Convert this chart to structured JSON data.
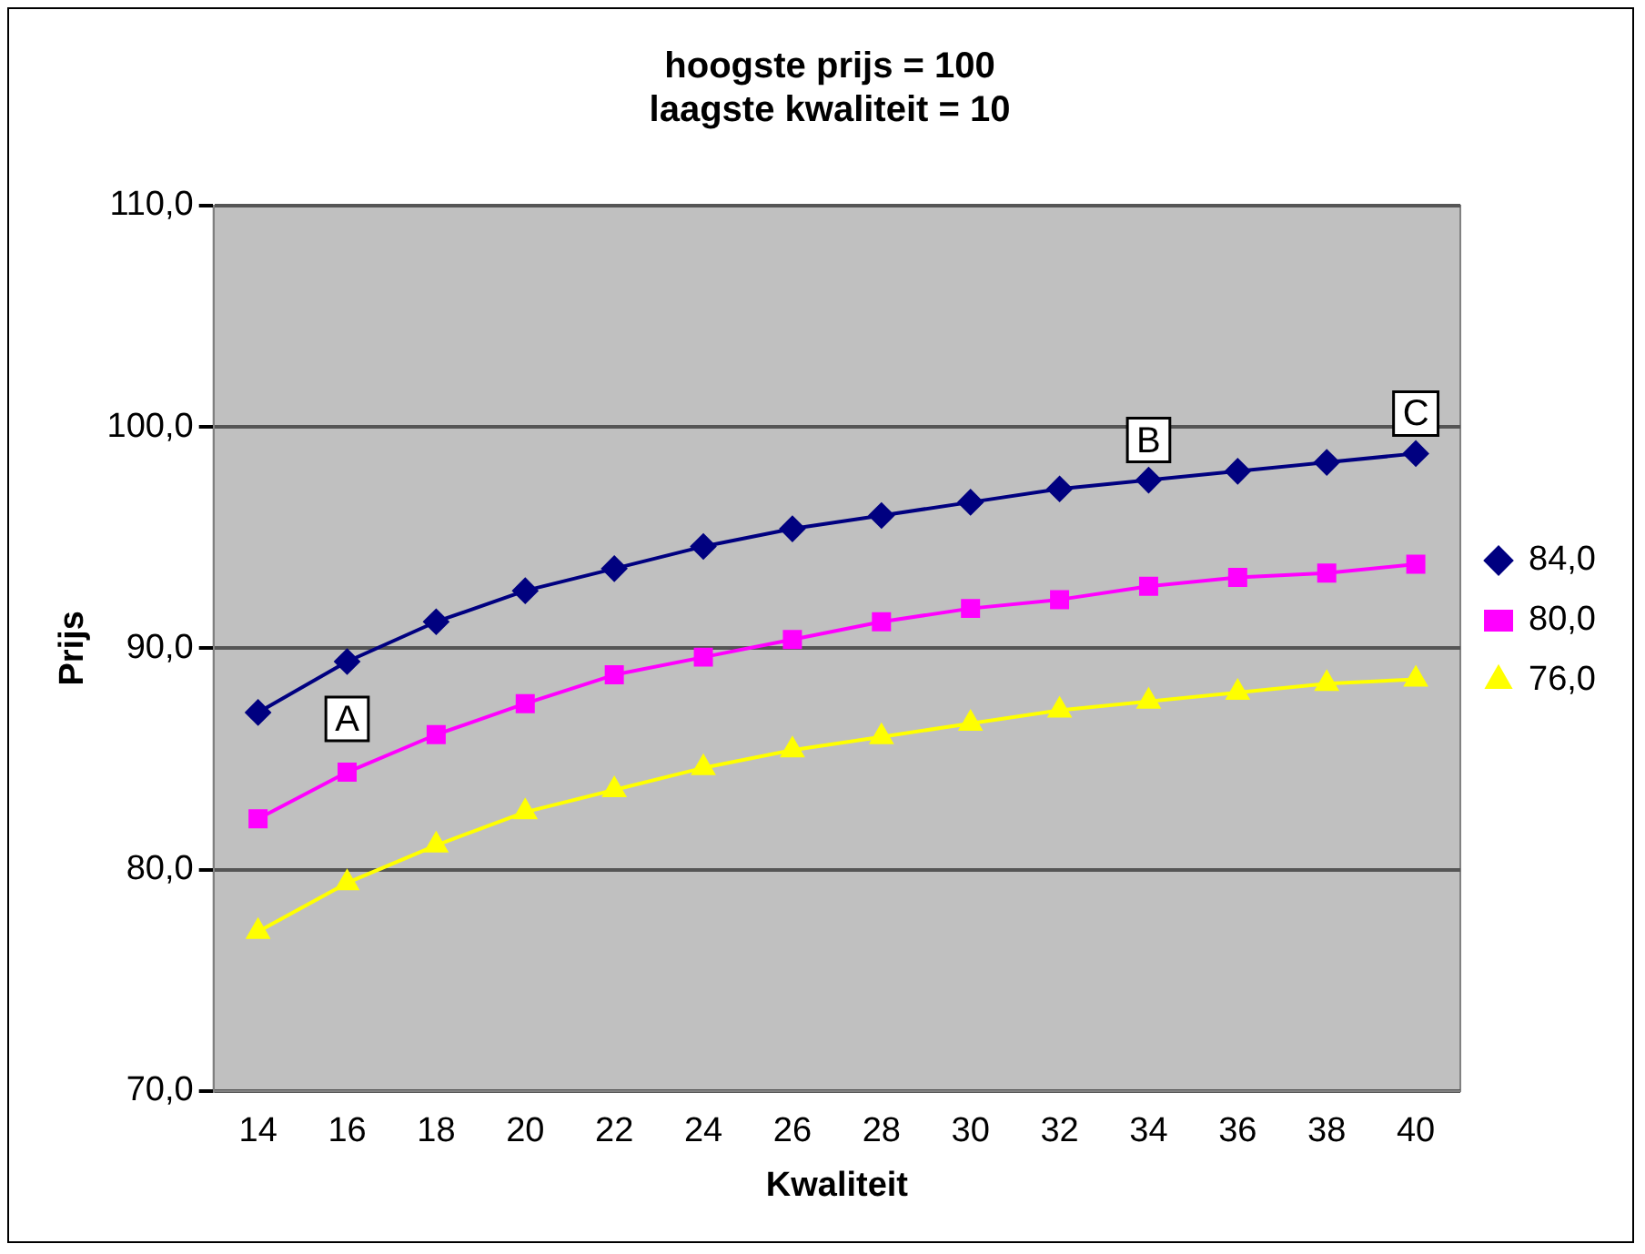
{
  "chart_data": {
    "type": "line",
    "title": [
      "hoogste prijs = 100",
      "laagste kwaliteit = 10"
    ],
    "xlabel": "Kwaliteit",
    "ylabel": "Prijs",
    "categories": [
      "14",
      "16",
      "18",
      "20",
      "22",
      "24",
      "26",
      "28",
      "30",
      "32",
      "34",
      "36",
      "38",
      "40"
    ],
    "series": [
      {
        "name": "84,0",
        "color": "#000080",
        "marker": "diamond",
        "values": [
          87.1,
          89.4,
          91.2,
          92.6,
          93.6,
          94.6,
          95.4,
          96.0,
          96.6,
          97.2,
          97.6,
          98.0,
          98.4,
          98.8
        ]
      },
      {
        "name": "80,0",
        "color": "#ff00ff",
        "marker": "square",
        "values": [
          82.3,
          84.4,
          86.1,
          87.5,
          88.8,
          89.6,
          90.4,
          91.2,
          91.8,
          92.2,
          92.8,
          93.2,
          93.4,
          93.8
        ]
      },
      {
        "name": "76,0",
        "color": "#ffff00",
        "marker": "triangle",
        "values": [
          77.2,
          79.4,
          81.1,
          82.6,
          83.6,
          84.6,
          85.4,
          86.0,
          86.6,
          87.2,
          87.6,
          88.0,
          88.4,
          88.6
        ]
      }
    ],
    "ylim": [
      70,
      110
    ],
    "yticks": [
      {
        "value": 70,
        "label": "70,0"
      },
      {
        "value": 80,
        "label": "80,0"
      },
      {
        "value": 90,
        "label": "90,0"
      },
      {
        "value": 100,
        "label": "100,0"
      },
      {
        "value": 110,
        "label": "110,0"
      }
    ],
    "grid": "y",
    "legend": "right",
    "line_style": "solid",
    "annotations": [
      {
        "text": "A",
        "x": "16",
        "y": 85
      },
      {
        "text": "B",
        "x": "34",
        "y": 97.6
      },
      {
        "text": "C",
        "x": "40",
        "y": 98.8
      }
    ]
  }
}
